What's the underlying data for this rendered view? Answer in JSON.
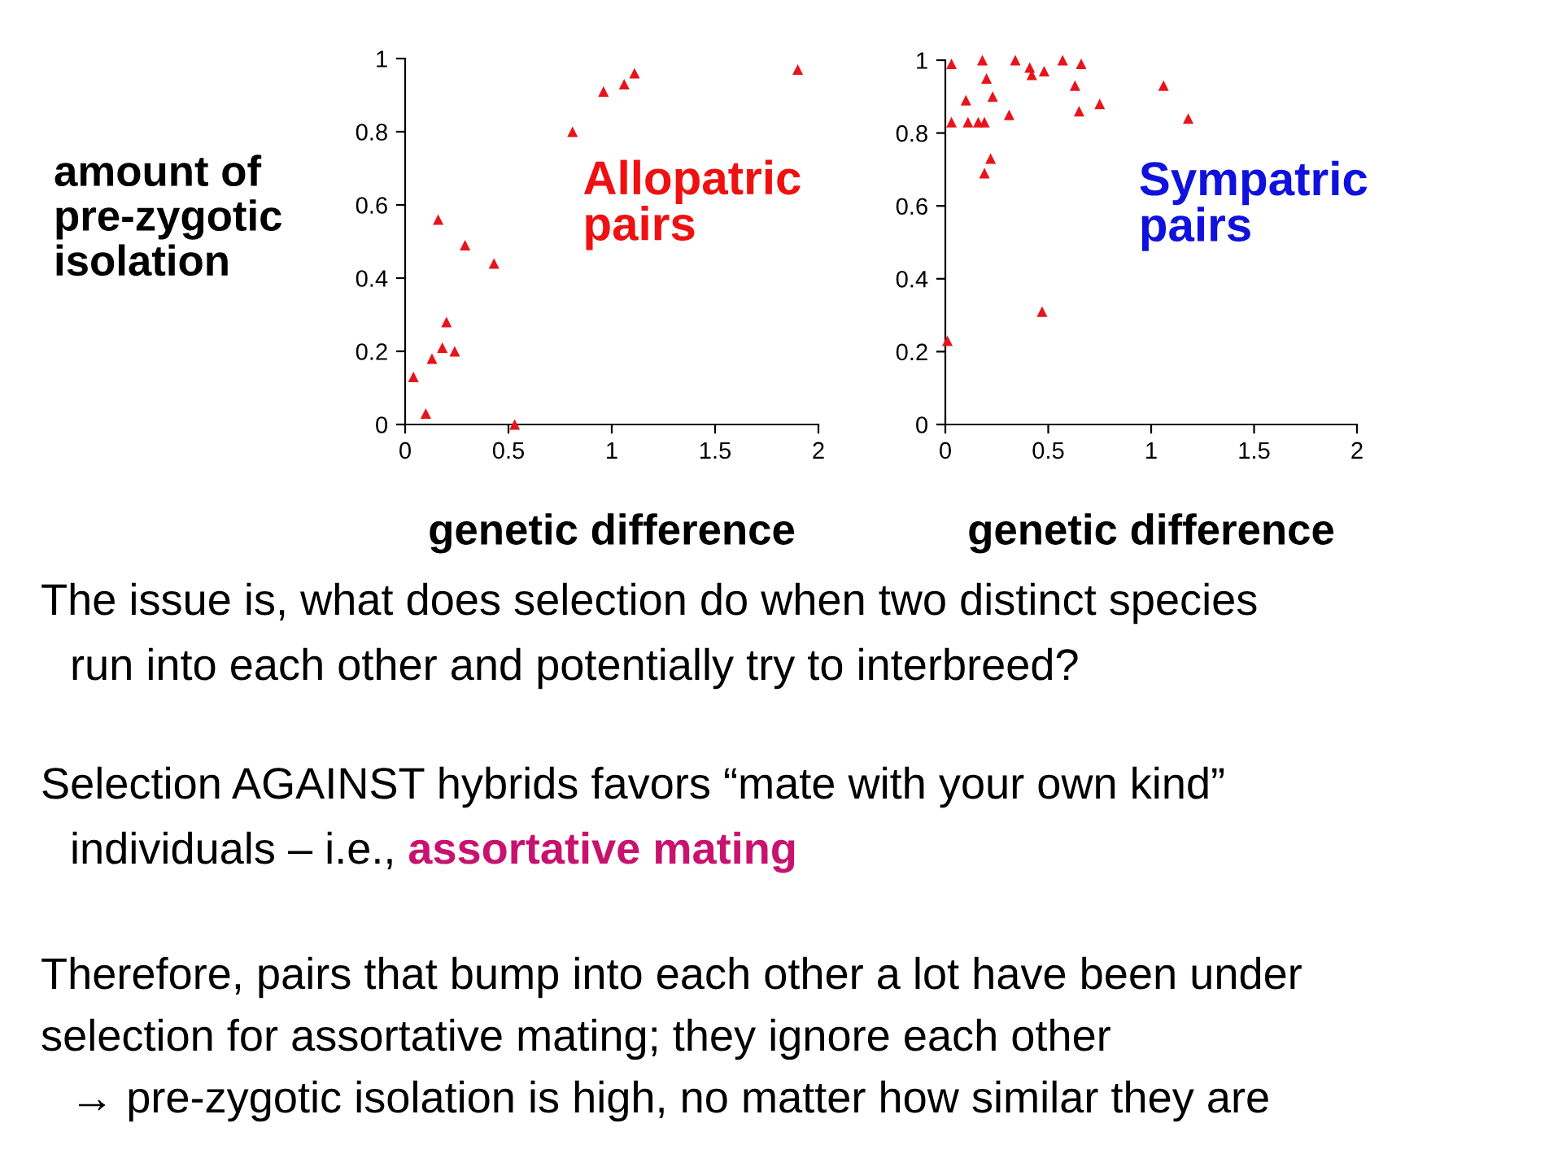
{
  "chart_data": [
    {
      "type": "scatter",
      "ylabel": "amount of\npre-zygotic\nisolation",
      "xlabel": "genetic difference",
      "marker": "triangle",
      "grid": false,
      "xlim": [
        0,
        2
      ],
      "ylim": [
        0,
        1
      ],
      "xticks": [
        0,
        0.5,
        1,
        1.5,
        2
      ],
      "yticks": [
        0,
        0.2,
        0.4,
        0.6,
        0.8,
        1
      ],
      "series": [
        {
          "color": "#e8141b",
          "x": [
            0.04,
            0.1,
            0.13,
            0.16,
            0.18,
            0.2,
            0.24,
            0.29,
            0.43,
            0.53,
            0.81,
            0.96,
            1.06,
            1.11,
            1.9
          ],
          "values": [
            0.13,
            0.03,
            0.18,
            0.56,
            0.21,
            0.28,
            0.2,
            0.49,
            0.44,
            0,
            0.8,
            0.91,
            0.93,
            0.96,
            0.97
          ]
        }
      ],
      "annotations": [
        "Allopatric\npairs",
        "The issue is, what does selection do when two distinct species",
        "run into each other and potentially try to interbreed?",
        "Selection AGAINST hybrids favors “mate with your own kind”",
        "individuals – i.e.,",
        "assortative mating",
        "Therefore, pairs that bump into each other a lot have been under",
        "selection for assortative mating; they ignore each other",
        "→ pre-zygotic isolation is high, no matter how similar they are"
      ]
    },
    {
      "type": "scatter",
      "xlabel": "genetic difference",
      "marker": "triangle",
      "grid": false,
      "xlim": [
        0,
        2
      ],
      "ylim": [
        0,
        1
      ],
      "xticks": [
        0,
        0.5,
        1,
        1.5,
        2
      ],
      "yticks": [
        0,
        0.2,
        0.4,
        0.6,
        0.8,
        1
      ],
      "series": [
        {
          "color": "#e8141b",
          "x": [
            0.01,
            0.03,
            0.03,
            0.1,
            0.11,
            0.16,
            0.18,
            0.19,
            0.19,
            0.2,
            0.22,
            0.23,
            0.31,
            0.34,
            0.41,
            0.42,
            0.47,
            0.48,
            0.57,
            0.63,
            0.65,
            0.66,
            0.75,
            1.06,
            1.18
          ],
          "values": [
            0.23,
            0.99,
            0.83,
            0.89,
            0.83,
            0.83,
            1,
            0.83,
            0.69,
            0.95,
            0.73,
            0.9,
            0.85,
            1,
            0.98,
            0.96,
            0.31,
            0.97,
            1,
            0.93,
            0.86,
            0.99,
            0.88,
            0.93,
            0.84
          ]
        }
      ],
      "annotations": [
        "Sympatric\npairs"
      ]
    }
  ]
}
